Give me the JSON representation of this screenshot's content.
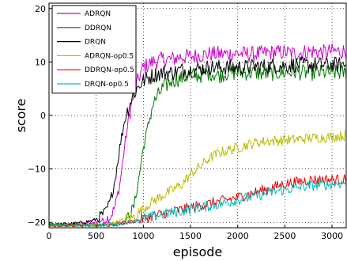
{
  "chart_data": {
    "type": "line",
    "xlabel": "episode",
    "ylabel": "score",
    "xlim": [
      0,
      3150
    ],
    "ylim": [
      -21,
      21
    ],
    "x_ticks": [
      0,
      500,
      1000,
      1500,
      2000,
      2500,
      3000
    ],
    "y_ticks": [
      -20,
      -10,
      0,
      10,
      20
    ],
    "grid": true,
    "grid_style": "dotted",
    "legend_position": "top-left",
    "series": [
      {
        "name": "ADRQN",
        "color": "#cc00cc",
        "x": [
          0,
          300,
          500,
          650,
          700,
          750,
          800,
          850,
          900,
          950,
          1000,
          1100,
          1200,
          1300,
          1400,
          1500,
          1600,
          1700,
          1800,
          1900,
          2000,
          2100,
          2200,
          2300,
          2400,
          2500,
          2600,
          2700,
          2800,
          2900,
          3000,
          3100,
          3150
        ],
        "y": [
          -20.5,
          -20.4,
          -20,
          -19,
          -17,
          -13,
          -6,
          0,
          4,
          7,
          9,
          10,
          10.5,
          10.5,
          11,
          11,
          11.3,
          11.5,
          11.5,
          11.5,
          11.6,
          11.5,
          11.5,
          11.7,
          11.8,
          11.8,
          11.6,
          11.8,
          12,
          11.8,
          12,
          12,
          12
        ]
      },
      {
        "name": "DDRQN",
        "color": "#007700",
        "x": [
          0,
          400,
          700,
          800,
          900,
          950,
          1000,
          1050,
          1100,
          1200,
          1300,
          1400,
          1500,
          1600,
          1700,
          1800,
          1900,
          2000,
          2100,
          2200,
          2300,
          2400,
          2500,
          2600,
          2700,
          2800,
          2900,
          3000,
          3100,
          3150
        ],
        "y": [
          -20.5,
          -20.5,
          -20.5,
          -20,
          -17,
          -12,
          -6,
          -2,
          2,
          5,
          6.5,
          7,
          7.5,
          7.5,
          8,
          7.5,
          8,
          8,
          8,
          8,
          7.8,
          8,
          8,
          8.2,
          8,
          8,
          8,
          8,
          8,
          8
        ]
      },
      {
        "name": "DRQN",
        "color": "#000000",
        "x": [
          0,
          300,
          500,
          600,
          650,
          700,
          750,
          800,
          850,
          900,
          950,
          1000,
          1100,
          1200,
          1300,
          1400,
          1500,
          1600,
          1700,
          1800,
          1900,
          2000,
          2100,
          2200,
          2300,
          2400,
          2500,
          2600,
          2700,
          2800,
          2900,
          3000,
          3100,
          3150
        ],
        "y": [
          -20.5,
          -20.2,
          -19.5,
          -18,
          -16,
          -12,
          -6,
          -1,
          2,
          4,
          5.5,
          6.5,
          7.5,
          8,
          8,
          8.5,
          8.5,
          8.7,
          9,
          9,
          9,
          9,
          9,
          9.2,
          9.2,
          9.3,
          9.3,
          9.5,
          9.5,
          9.5,
          9.5,
          9.5,
          9.5,
          9.5
        ]
      },
      {
        "name": "ADRQN-op0.5",
        "color": "#bbbb00",
        "x": [
          0,
          300,
          600,
          800,
          900,
          1000,
          1100,
          1200,
          1300,
          1400,
          1500,
          1600,
          1700,
          1800,
          1900,
          2000,
          2100,
          2200,
          2300,
          2400,
          2500,
          2600,
          2700,
          2800,
          2900,
          3000,
          3100,
          3150
        ],
        "y": [
          -20.6,
          -20.5,
          -20.5,
          -19.5,
          -19,
          -17.5,
          -16,
          -15,
          -14,
          -13,
          -11,
          -9.5,
          -8,
          -7,
          -6.5,
          -6,
          -5.5,
          -5,
          -4.8,
          -4.7,
          -4.6,
          -4.5,
          -4.3,
          -4.2,
          -4.1,
          -4,
          -3.8,
          -3.7
        ]
      },
      {
        "name": "DDRQN-op0.5",
        "color": "#ee0000",
        "x": [
          0,
          400,
          700,
          900,
          1000,
          1100,
          1200,
          1300,
          1400,
          1500,
          1600,
          1700,
          1800,
          1900,
          2000,
          2100,
          2200,
          2300,
          2400,
          2500,
          2600,
          2700,
          2800,
          2900,
          3000,
          3100,
          3150
        ],
        "y": [
          -20.6,
          -20.5,
          -20.3,
          -19.8,
          -19.3,
          -18.8,
          -18.4,
          -18,
          -17.6,
          -17.2,
          -16.8,
          -16.5,
          -16.1,
          -15.7,
          -15.3,
          -14.8,
          -14.3,
          -13.8,
          -13.3,
          -12.8,
          -12.5,
          -12.2,
          -12,
          -12,
          -12,
          -12,
          -12
        ]
      },
      {
        "name": "DRQN-op0.5",
        "color": "#00bbbb",
        "x": [
          0,
          400,
          700,
          900,
          1000,
          1100,
          1200,
          1300,
          1400,
          1500,
          1600,
          1700,
          1800,
          1900,
          2000,
          2100,
          2200,
          2300,
          2400,
          2500,
          2600,
          2700,
          2800,
          2900,
          3000,
          3100,
          3150
        ],
        "y": [
          -20.6,
          -20.5,
          -20.3,
          -19.8,
          -19.3,
          -18.9,
          -18.5,
          -18.2,
          -17.9,
          -17.5,
          -17.2,
          -16.9,
          -16.6,
          -16.2,
          -15.8,
          -15.4,
          -15,
          -14.6,
          -14.2,
          -13.9,
          -13.6,
          -13.3,
          -13.1,
          -13,
          -12.8,
          -12.7,
          -12.6
        ]
      }
    ]
  }
}
